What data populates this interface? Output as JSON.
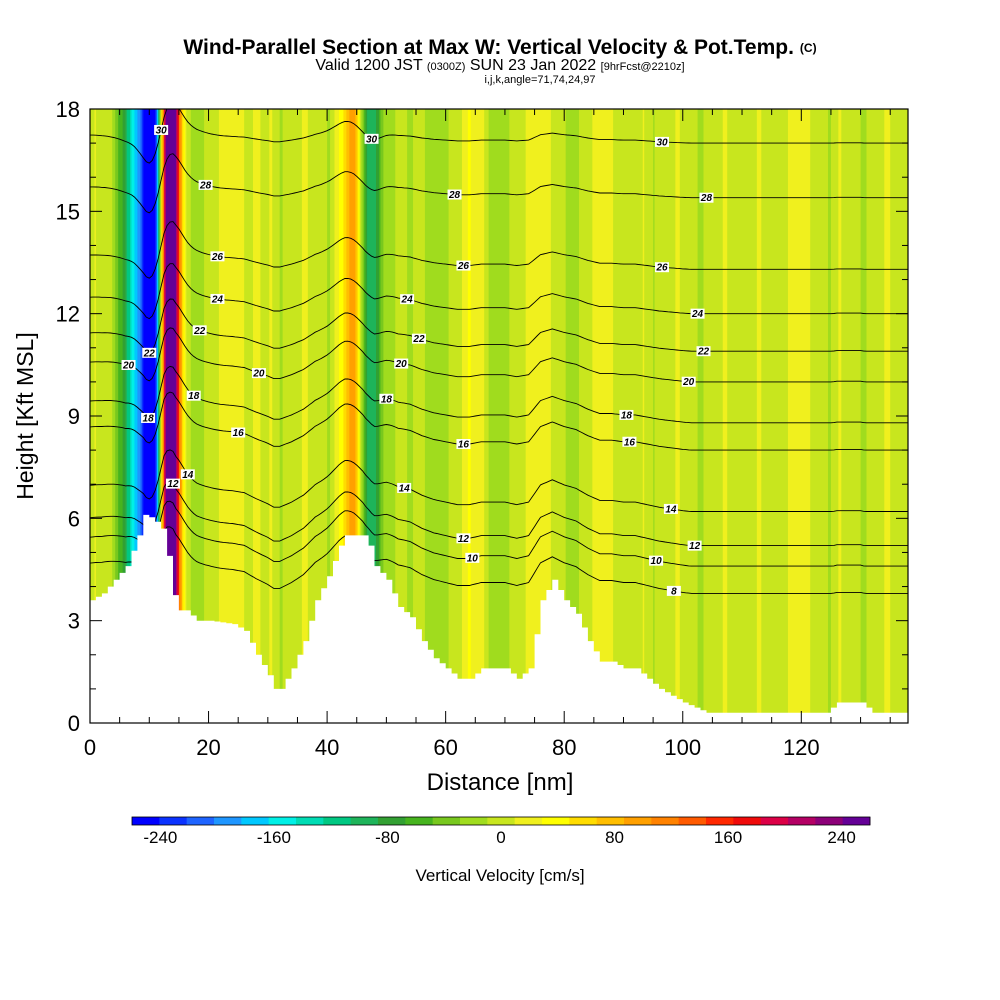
{
  "title": {
    "main": "Wind-Parallel Section at Max W: Vertical Velocity & Pot.Temp.",
    "copyright": "(C)",
    "valid_prefix": "Valid 1200 JST",
    "valid_utc": "(0300Z)",
    "valid_date": "SUN 23 Jan 2022",
    "forecast": "[9hrFcst@2210z]",
    "params": "i,j,k,angle=71,74,24,97"
  },
  "chart_data": {
    "type": "heatmap",
    "title": "Wind-Parallel Section at Max W: Vertical Velocity & Pot.Temp.",
    "xlabel": "Distance [nm]",
    "ylabel": "Height [Kft MSL]",
    "xlim": [
      0,
      138
    ],
    "ylim": [
      0,
      18
    ],
    "x_ticks": [
      0,
      20,
      40,
      60,
      80,
      100,
      120
    ],
    "y_ticks": [
      0,
      3,
      6,
      9,
      12,
      15,
      18
    ],
    "colorbar": {
      "label": "Vertical Velocity [cm/s]",
      "min": -260,
      "max": 260,
      "tick_values": [
        -240,
        -160,
        -80,
        0,
        80,
        160,
        240
      ],
      "tick_labels": [
        "-240",
        "-160",
        "-80",
        "0",
        "80",
        "160",
        "240"
      ],
      "colors": [
        "#0000ff",
        "#0a32ff",
        "#1e64ff",
        "#1e96ff",
        "#00c8ff",
        "#00f0e6",
        "#00dcb4",
        "#00c882",
        "#1eb45a",
        "#32a032",
        "#46b41e",
        "#78c81e",
        "#a0dc1e",
        "#c8e61e",
        "#f0f01e",
        "#ffff00",
        "#ffdc00",
        "#ffbe00",
        "#ffa000",
        "#ff8200",
        "#ff5a00",
        "#ff2800",
        "#f00a0a",
        "#dc0046",
        "#b40064",
        "#8c0078",
        "#640096"
      ]
    },
    "terrain_heights_kft": [
      [
        0,
        3.6
      ],
      [
        2,
        3.8
      ],
      [
        4,
        4.2
      ],
      [
        6,
        4.6
      ],
      [
        8,
        5.5
      ],
      [
        9,
        6.1
      ],
      [
        10.5,
        6.0
      ],
      [
        11.5,
        5.8
      ],
      [
        12.5,
        5.6
      ],
      [
        13.5,
        4.2
      ],
      [
        14.5,
        3.3
      ],
      [
        16,
        3.3
      ],
      [
        18,
        3.0
      ],
      [
        20,
        3.0
      ],
      [
        24,
        2.9
      ],
      [
        26,
        2.7
      ],
      [
        28,
        2.0
      ],
      [
        30,
        1.4
      ],
      [
        31,
        1.0
      ],
      [
        32,
        1.0
      ],
      [
        34,
        1.6
      ],
      [
        36,
        2.4
      ],
      [
        38,
        3.6
      ],
      [
        40,
        4.3
      ],
      [
        42,
        5.2
      ],
      [
        43,
        5.5
      ],
      [
        46,
        5.5
      ],
      [
        47,
        5.2
      ],
      [
        48,
        4.6
      ],
      [
        50,
        4.2
      ],
      [
        52,
        3.4
      ],
      [
        54,
        3.1
      ],
      [
        56,
        2.4
      ],
      [
        58,
        1.9
      ],
      [
        60,
        1.6
      ],
      [
        62,
        1.3
      ],
      [
        64,
        1.3
      ],
      [
        66,
        1.6
      ],
      [
        70,
        1.6
      ],
      [
        72,
        1.3
      ],
      [
        74,
        1.6
      ],
      [
        76,
        3.6
      ],
      [
        78,
        4.2
      ],
      [
        80,
        3.6
      ],
      [
        82,
        3.2
      ],
      [
        84,
        2.4
      ],
      [
        86,
        1.8
      ],
      [
        88,
        1.8
      ],
      [
        90,
        1.6
      ],
      [
        92,
        1.6
      ],
      [
        94,
        1.3
      ],
      [
        96,
        1.0
      ],
      [
        98,
        0.8
      ],
      [
        100,
        0.6
      ],
      [
        104,
        0.3
      ],
      [
        124,
        0.3
      ],
      [
        126,
        0.6
      ],
      [
        130,
        0.6
      ],
      [
        132,
        0.3
      ],
      [
        136,
        0.3
      ],
      [
        138,
        0.3
      ]
    ],
    "velocity_bands": [
      {
        "center_nm": 10.5,
        "width_nm": 1.4,
        "w_cms": -250
      },
      {
        "center_nm": 9.5,
        "width_nm": 3.0,
        "w_cms": -150
      },
      {
        "center_nm": 7.5,
        "width_nm": 2.5,
        "w_cms": -70
      },
      {
        "center_nm": 13.5,
        "width_nm": 1.4,
        "w_cms": 230
      },
      {
        "center_nm": 13.5,
        "width_nm": 3.2,
        "w_cms": 130
      },
      {
        "center_nm": 16.5,
        "width_nm": 2.0,
        "w_cms": -60
      },
      {
        "center_nm": 44.5,
        "width_nm": 2.2,
        "w_cms": 90
      },
      {
        "center_nm": 47.0,
        "width_nm": 1.6,
        "w_cms": -110
      },
      {
        "center_nm": 49.5,
        "width_nm": 2.0,
        "w_cms": -30
      },
      {
        "center_nm": 25.0,
        "width_nm": 3.0,
        "w_cms": 20
      },
      {
        "center_nm": 58.5,
        "width_nm": 2.0,
        "w_cms": -25
      },
      {
        "center_nm": 65.0,
        "width_nm": 2.5,
        "w_cms": 25
      },
      {
        "center_nm": 69.0,
        "width_nm": 2.5,
        "w_cms": -20
      },
      {
        "center_nm": 75.0,
        "width_nm": 2.0,
        "w_cms": 25
      },
      {
        "center_nm": 81.0,
        "width_nm": 2.0,
        "w_cms": -15
      },
      {
        "center_nm": 87.0,
        "width_nm": 2.0,
        "w_cms": 15
      },
      {
        "center_nm": 118.0,
        "width_nm": 3.0,
        "w_cms": 12
      }
    ],
    "isentropes": [
      {
        "theta": 8,
        "label": "8",
        "label_x_nm": 98.5,
        "base_kft": 3.8
      },
      {
        "theta": 10,
        "label": "10",
        "label_x_nm": 64.5,
        "base_kft": 4.6
      },
      {
        "theta": 10,
        "label": "10",
        "label_x_nm": 95.5,
        "base_kft": 4.6
      },
      {
        "theta": 12,
        "label": "12",
        "label_x_nm": 14.0,
        "base_kft": 5.2
      },
      {
        "theta": 12,
        "label": "12",
        "label_x_nm": 63.0,
        "base_kft": 5.2
      },
      {
        "theta": 12,
        "label": "12",
        "label_x_nm": 102.0,
        "base_kft": 5.2
      },
      {
        "theta": 14,
        "label": "14",
        "label_x_nm": 16.5,
        "base_kft": 6.2
      },
      {
        "theta": 14,
        "label": "14",
        "label_x_nm": 53.0,
        "base_kft": 6.2
      },
      {
        "theta": 14,
        "label": "14",
        "label_x_nm": 98.0,
        "base_kft": 6.2
      },
      {
        "theta": 16,
        "label": "16",
        "label_x_nm": 25.0,
        "base_kft": 8.0
      },
      {
        "theta": 16,
        "label": "16",
        "label_x_nm": 63.0,
        "base_kft": 8.0
      },
      {
        "theta": 16,
        "label": "16",
        "label_x_nm": 91.0,
        "base_kft": 8.0
      },
      {
        "theta": 18,
        "label": "18",
        "label_x_nm": 9.8,
        "base_kft": 8.8
      },
      {
        "theta": 18,
        "label": "18",
        "label_x_nm": 17.5,
        "base_kft": 8.8
      },
      {
        "theta": 18,
        "label": "18",
        "label_x_nm": 50.0,
        "base_kft": 8.8
      },
      {
        "theta": 18,
        "label": "18",
        "label_x_nm": 90.5,
        "base_kft": 8.8
      },
      {
        "theta": 20,
        "label": "20",
        "label_x_nm": 6.5,
        "base_kft": 10.0
      },
      {
        "theta": 20,
        "label": "20",
        "label_x_nm": 28.5,
        "base_kft": 10.0
      },
      {
        "theta": 20,
        "label": "20",
        "label_x_nm": 52.5,
        "base_kft": 10.0
      },
      {
        "theta": 20,
        "label": "20",
        "label_x_nm": 101.0,
        "base_kft": 10.0
      },
      {
        "theta": 22,
        "label": "22",
        "label_x_nm": 10.0,
        "base_kft": 10.9
      },
      {
        "theta": 22,
        "label": "22",
        "label_x_nm": 18.5,
        "base_kft": 10.9
      },
      {
        "theta": 22,
        "label": "22",
        "label_x_nm": 55.5,
        "base_kft": 10.9
      },
      {
        "theta": 22,
        "label": "22",
        "label_x_nm": 103.5,
        "base_kft": 10.9
      },
      {
        "theta": 24,
        "label": "24",
        "label_x_nm": 21.5,
        "base_kft": 12.0
      },
      {
        "theta": 24,
        "label": "24",
        "label_x_nm": 53.5,
        "base_kft": 12.0
      },
      {
        "theta": 24,
        "label": "24",
        "label_x_nm": 102.5,
        "base_kft": 12.0
      },
      {
        "theta": 26,
        "label": "26",
        "label_x_nm": 21.5,
        "base_kft": 13.3
      },
      {
        "theta": 26,
        "label": "26",
        "label_x_nm": 63.0,
        "base_kft": 13.3
      },
      {
        "theta": 26,
        "label": "26",
        "label_x_nm": 96.5,
        "base_kft": 13.3
      },
      {
        "theta": 28,
        "label": "28",
        "label_x_nm": 19.5,
        "base_kft": 15.4
      },
      {
        "theta": 28,
        "label": "28",
        "label_x_nm": 61.5,
        "base_kft": 15.4
      },
      {
        "theta": 28,
        "label": "28",
        "label_x_nm": 104.0,
        "base_kft": 15.4
      },
      {
        "theta": 30,
        "label": "30",
        "label_x_nm": 12.0,
        "base_kft": 17.0
      },
      {
        "theta": 30,
        "label": "30",
        "label_x_nm": 47.5,
        "base_kft": 17.0
      },
      {
        "theta": 30,
        "label": "30",
        "label_x_nm": 96.5,
        "base_kft": 17.0
      }
    ]
  }
}
